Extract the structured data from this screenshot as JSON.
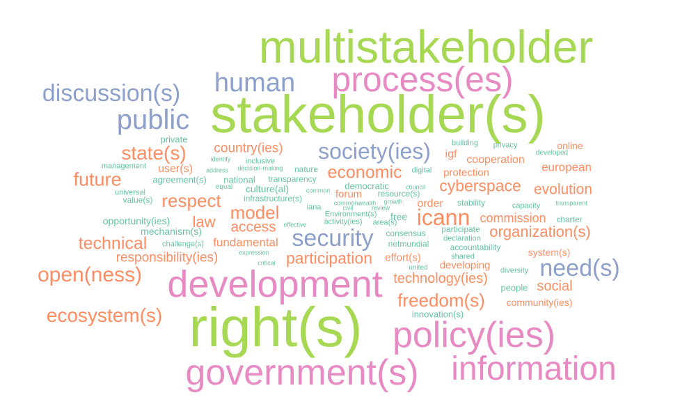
{
  "colors": {
    "lime": "#a6d854",
    "pink": "#e78ac3",
    "blue": "#8da0cb",
    "orange": "#fc8d62",
    "teal": "#66c2a5"
  },
  "words": {
    "multistakeholder": "multistakeholder",
    "stakeholders": "stakeholder(s)",
    "rights": "right(s)",
    "processes": "process(es)",
    "development": "development",
    "policies": "policy(ies)",
    "governments": "government(s)",
    "information": "information",
    "human": "human",
    "discussions": "discussion(s)",
    "public": "public",
    "societies": "society(ies)",
    "security": "security",
    "needs": "need(s)",
    "states": "state(s)",
    "countries": "country(ies)",
    "future": "future",
    "economic": "economic",
    "cyberspace": "cyberspace",
    "evolution": "evolution",
    "respect": "respect",
    "model": "model",
    "icann": "icann",
    "access": "access",
    "law": "law",
    "technical": "technical",
    "organizations": "organization(s)",
    "participation": "participation",
    "openness": "open(ness)",
    "ecosystems": "ecosystem(s)",
    "freedoms": "freedom(s)",
    "technologies": "technology(ies)",
    "social": "social",
    "responsibilities": "responsibility(ies)",
    "fundamental": "fundamental",
    "commission": "commission",
    "european": "european",
    "cooperation": "cooperation",
    "protection": "protection",
    "igf": "igf",
    "online": "online",
    "users": "user(s)",
    "forum": "forum",
    "order": "order",
    "efforts": "effort(s)",
    "developing": "developing",
    "systems": "system(s)",
    "communities": "community(ies)",
    "private": "private",
    "building": "building",
    "privacy": "privacy",
    "developed": "developed",
    "management": "management",
    "identify": "identify",
    "inclusive": "inclusive",
    "address": "address",
    "decision_making": "decision-making",
    "nature": "nature",
    "digital": "digital",
    "agreements": "agreement(s)",
    "national": "national",
    "transparency": "transparency",
    "universal": "universal",
    "equal": "equal",
    "cultural": "culture(al)",
    "democratic": "democratic",
    "council": "council",
    "values": "value(s)",
    "common": "common",
    "infrastructures": "infrastructure(s)",
    "resources": "resource(s)",
    "commonwealth": "commonwealth",
    "growth": "growth",
    "stability": "stability",
    "capacity": "capacity",
    "transparent": "transparent",
    "iana": "iana",
    "environments": "Environment(s)",
    "civil": "civil",
    "review": "review",
    "opportunities": "opportunity(ies)",
    "activities": "activity(ies)",
    "areas": "area(s)",
    "free": "free",
    "charter": "charter",
    "effective": "effective",
    "mechanisms": "mechanism(s)",
    "participate": "participate",
    "consensus": "consensus",
    "declaration": "declaration",
    "challenges": "challenge(s)",
    "netmundial": "netmundial",
    "accountability": "accountability",
    "expression": "expression",
    "shared": "shared",
    "critical": "critical",
    "united": "united",
    "diversity": "diversity",
    "people": "people",
    "innovations": "innovation(s)"
  }
}
